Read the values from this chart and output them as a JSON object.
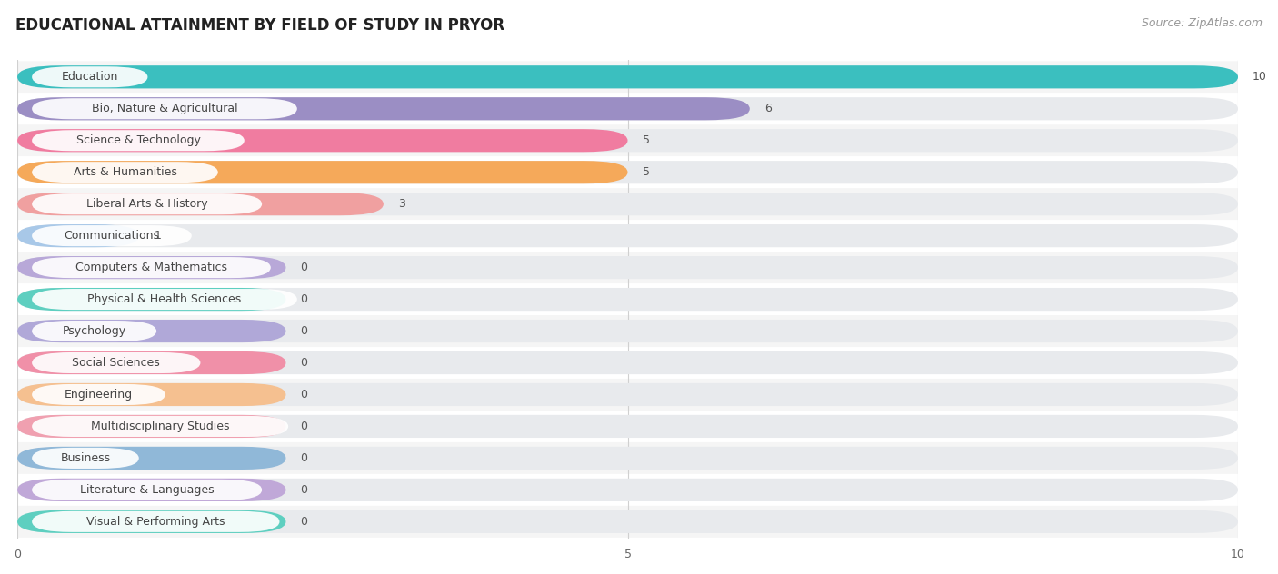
{
  "title": "EDUCATIONAL ATTAINMENT BY FIELD OF STUDY IN PRYOR",
  "source": "Source: ZipAtlas.com",
  "categories": [
    "Education",
    "Bio, Nature & Agricultural",
    "Science & Technology",
    "Arts & Humanities",
    "Liberal Arts & History",
    "Communications",
    "Computers & Mathematics",
    "Physical & Health Sciences",
    "Psychology",
    "Social Sciences",
    "Engineering",
    "Multidisciplinary Studies",
    "Business",
    "Literature & Languages",
    "Visual & Performing Arts"
  ],
  "values": [
    10,
    6,
    5,
    5,
    3,
    1,
    0,
    0,
    0,
    0,
    0,
    0,
    0,
    0,
    0
  ],
  "bar_colors": [
    "#3bbfbf",
    "#9b8ec4",
    "#f07ca0",
    "#f5a95a",
    "#f0a0a0",
    "#a8c8e8",
    "#b8a8d8",
    "#5ecfc0",
    "#b0a8d8",
    "#f090a8",
    "#f5c090",
    "#f0a0b0",
    "#90b8d8",
    "#c0a8d8",
    "#5ecfc0"
  ],
  "zero_bar_width": 2.2,
  "full_bar_width": 10,
  "xlim": [
    0,
    10
  ],
  "xticks": [
    0,
    5,
    10
  ],
  "bar_height": 0.72,
  "bg_bar_color": "#e8eaed",
  "row_colors": [
    "#f5f5f5",
    "#ffffff"
  ],
  "title_fontsize": 12,
  "source_fontsize": 9,
  "label_fontsize": 9,
  "value_fontsize": 9
}
